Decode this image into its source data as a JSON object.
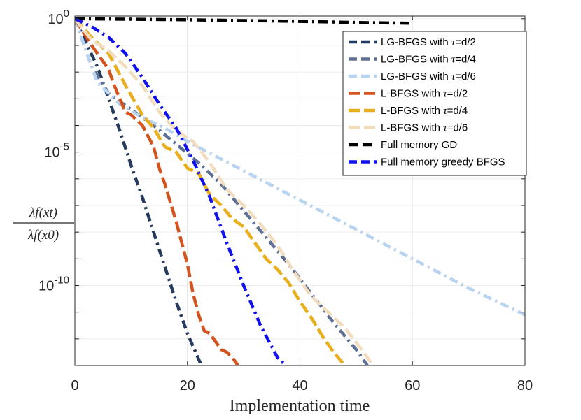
{
  "chart_data": {
    "type": "line",
    "title": "",
    "xlabel": "Implementation time",
    "ylabel": {
      "numerator": "λf(xt)",
      "denominator": "λf(x0)"
    },
    "xlim": [
      0,
      80
    ],
    "ylim_log10": [
      -13,
      0.1
    ],
    "yscale": "log",
    "grid": true,
    "legend_position": "top-right",
    "x_ticks": [
      0,
      20,
      40,
      60,
      80
    ],
    "x_tick_labels": [
      "0",
      "20",
      "40",
      "60",
      "80"
    ],
    "y_ticks_log10": [
      0,
      -5,
      -10
    ],
    "y_tick_labels": [
      {
        "base": "10",
        "exp": "0"
      },
      {
        "base": "10",
        "exp": "-5"
      },
      {
        "base": "10",
        "exp": "-10"
      }
    ],
    "series": [
      {
        "name": "LG-BFGS with τ=d/2",
        "prefix": "LG-BFGS with ",
        "param": "τ",
        "suffix": "=d/2",
        "color": "#253a5c",
        "dash": "12,6,3,6",
        "x": [
          0,
          2,
          4,
          6,
          8,
          10,
          12,
          14,
          16,
          18,
          20,
          22.5
        ],
        "y": [
          0,
          -0.9,
          -1.8,
          -3.0,
          -4.2,
          -5.5,
          -6.7,
          -8.0,
          -9.3,
          -10.6,
          -11.8,
          -13.0
        ]
      },
      {
        "name": "LG-BFGS with τ=d/4",
        "prefix": "LG-BFGS with ",
        "param": "τ",
        "suffix": "=d/4",
        "color": "#5e7195",
        "dash": "12,6,3,6",
        "x": [
          0,
          3,
          6,
          10,
          14,
          18,
          22,
          26,
          30,
          34,
          38,
          42,
          46,
          50,
          52
        ],
        "y": [
          0,
          -1.8,
          -2.8,
          -3.4,
          -4.0,
          -4.7,
          -5.4,
          -6.2,
          -7.2,
          -8.2,
          -9.2,
          -10.3,
          -11.4,
          -12.4,
          -13.0
        ]
      },
      {
        "name": "LG-BFGS with τ=d/6",
        "prefix": "LG-BFGS with ",
        "param": "τ",
        "suffix": "=d/6",
        "color": "#b7d3ef",
        "dash": "12,6,3,6",
        "x": [
          0,
          2,
          4,
          8,
          12,
          16,
          20,
          30,
          40,
          50,
          60,
          70,
          80
        ],
        "y": [
          0,
          -1.2,
          -2.4,
          -3.2,
          -3.7,
          -4.1,
          -4.6,
          -5.7,
          -6.8,
          -7.9,
          -9.0,
          -10.1,
          -11.1
        ]
      },
      {
        "name": "L-BFGS with τ=d/2",
        "prefix": "L-BFGS with ",
        "param": "τ",
        "suffix": "=d/2",
        "color": "#d45420",
        "dash": "16,6",
        "x": [
          0,
          3,
          6,
          7,
          8,
          9,
          10,
          12,
          14,
          15,
          16,
          17,
          18,
          19,
          20,
          21,
          22,
          23,
          24,
          25,
          26,
          27,
          28,
          29
        ],
        "y": [
          0,
          -1.0,
          -1.9,
          -2.5,
          -3.0,
          -3.5,
          -3.6,
          -4.0,
          -4.8,
          -5.6,
          -6.2,
          -6.9,
          -7.6,
          -8.4,
          -9.2,
          -10.3,
          -11.1,
          -11.7,
          -11.8,
          -12.1,
          -12.4,
          -12.5,
          -12.7,
          -13.0
        ]
      },
      {
        "name": "L-BFGS with τ=d/4",
        "prefix": "L-BFGS with ",
        "param": "τ",
        "suffix": "=d/4",
        "color": "#e8ae1c",
        "dash": "16,6",
        "x": [
          0,
          3,
          6,
          9,
          12,
          14,
          16,
          18,
          20,
          22,
          24,
          26,
          28,
          30,
          32,
          34,
          36,
          38,
          40,
          42,
          44,
          46,
          48
        ],
        "y": [
          0,
          -0.7,
          -1.3,
          -2.5,
          -3.6,
          -4.1,
          -4.8,
          -5.0,
          -5.6,
          -5.8,
          -6.6,
          -7.0,
          -7.5,
          -7.8,
          -8.4,
          -9.0,
          -9.4,
          -9.9,
          -10.6,
          -11.2,
          -11.9,
          -12.5,
          -13.0
        ]
      },
      {
        "name": "L-BFGS with τ=d/6",
        "prefix": "L-BFGS with ",
        "param": "τ",
        "suffix": "=d/6",
        "color": "#f2dcbe",
        "dash": "16,6",
        "x": [
          0,
          3,
          6,
          9,
          12,
          15,
          18,
          21,
          24,
          27,
          30,
          33,
          36,
          39,
          42,
          45,
          48,
          51,
          53
        ],
        "y": [
          0,
          -0.8,
          -1.2,
          -1.8,
          -2.5,
          -3.5,
          -4.2,
          -4.6,
          -5.4,
          -6.4,
          -7.0,
          -7.7,
          -8.5,
          -9.5,
          -10.4,
          -11.0,
          -11.6,
          -12.4,
          -13.0
        ]
      },
      {
        "name": "Full memory GD",
        "prefix": "Full memory GD",
        "param": "",
        "suffix": "",
        "color": "#000000",
        "dash": "14,6,3,6",
        "x": [
          0,
          20,
          40,
          50,
          60
        ],
        "y": [
          0,
          -0.04,
          -0.1,
          -0.14,
          -0.17
        ]
      },
      {
        "name": "Full memory greedy BFGS",
        "prefix": "Full memory greedy BFGS",
        "param": "",
        "suffix": "",
        "color": "#1111ee",
        "dash": "12,6,3,6",
        "x": [
          0,
          3,
          6,
          9,
          12,
          15,
          18,
          21,
          24,
          27,
          30,
          33,
          36,
          37.5
        ],
        "y": [
          0,
          -0.3,
          -0.7,
          -1.3,
          -2.2,
          -3.2,
          -4.1,
          -5.3,
          -6.7,
          -8.4,
          -10.0,
          -11.5,
          -12.7,
          -13.0
        ]
      }
    ]
  }
}
